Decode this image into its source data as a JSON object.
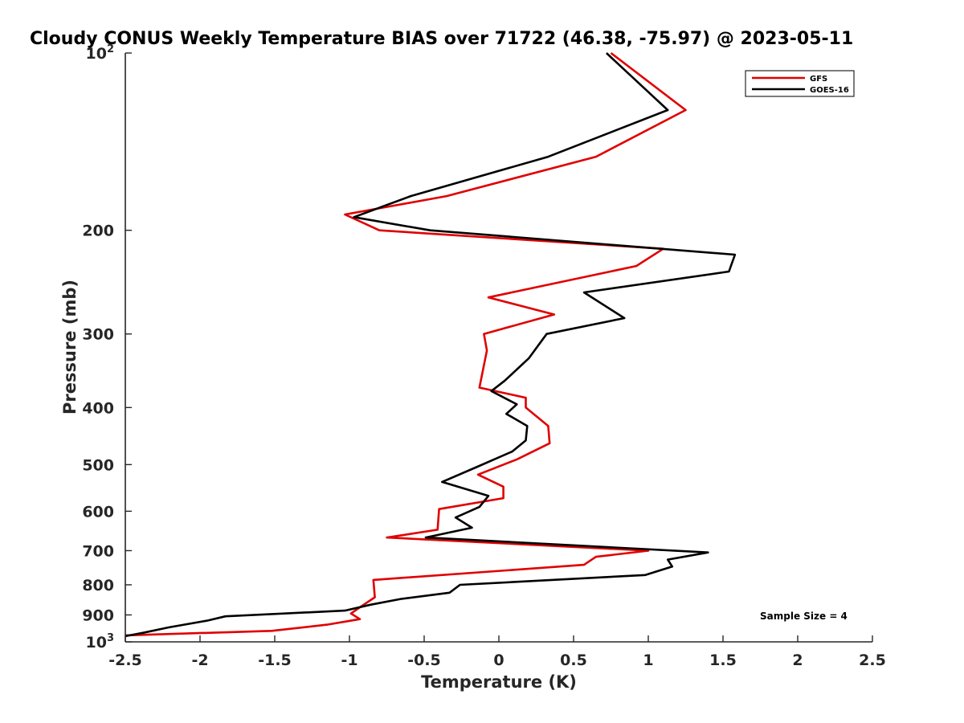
{
  "chart_data": {
    "type": "line",
    "title": "Cloudy CONUS Weekly Temperature BIAS over 71722 (46.38, -75.97) @ 2023-05-11",
    "xlabel": "Temperature (K)",
    "ylabel": "Pressure (mb)",
    "xlim": [
      -2.5,
      2.5
    ],
    "ylim": [
      100,
      1000
    ],
    "y_scale": "log",
    "y_reversed": true,
    "grid": false,
    "legend_position": "top-right",
    "x_ticks": [
      -2.5,
      -2,
      -1.5,
      -1,
      -0.5,
      0,
      0.5,
      1,
      1.5,
      2,
      2.5
    ],
    "x_tick_labels": [
      "-2.5",
      "-2",
      "-1.5",
      "-1",
      "-0.5",
      "0",
      "0.5",
      "1",
      "1.5",
      "2",
      "2.5"
    ],
    "y_ticks": [
      100,
      200,
      300,
      400,
      500,
      600,
      700,
      800,
      900,
      1000
    ],
    "y_tick_labels": [
      {
        "base": "10",
        "exp": "2"
      },
      {
        "base": "200",
        "exp": ""
      },
      {
        "base": "300",
        "exp": ""
      },
      {
        "base": "400",
        "exp": ""
      },
      {
        "base": "500",
        "exp": ""
      },
      {
        "base": "600",
        "exp": ""
      },
      {
        "base": "700",
        "exp": ""
      },
      {
        "base": "800",
        "exp": ""
      },
      {
        "base": "900",
        "exp": ""
      },
      {
        "base": "10",
        "exp": "3"
      }
    ],
    "annotation": "Sample Size = 4",
    "series": [
      {
        "name": "GFS",
        "color": "#e00000",
        "points": [
          [
            0.75,
            100
          ],
          [
            1.25,
            125
          ],
          [
            0.65,
            150
          ],
          [
            -0.35,
            175
          ],
          [
            -1.03,
            188
          ],
          [
            -0.8,
            200
          ],
          [
            1.1,
            215
          ],
          [
            0.92,
            230
          ],
          [
            -0.07,
            260
          ],
          [
            0.37,
            278
          ],
          [
            -0.1,
            300
          ],
          [
            -0.08,
            320
          ],
          [
            -0.13,
            370
          ],
          [
            0.18,
            385
          ],
          [
            0.18,
            400
          ],
          [
            0.33,
            430
          ],
          [
            0.34,
            460
          ],
          [
            0.12,
            490
          ],
          [
            -0.14,
            520
          ],
          [
            0.03,
            545
          ],
          [
            0.03,
            570
          ],
          [
            -0.4,
            595
          ],
          [
            -0.41,
            645
          ],
          [
            -0.75,
            665
          ],
          [
            1.0,
            700
          ],
          [
            0.65,
            717
          ],
          [
            0.57,
            740
          ],
          [
            -0.84,
            785
          ],
          [
            -0.83,
            840
          ],
          [
            -0.92,
            870
          ],
          [
            -0.99,
            895
          ],
          [
            -0.93,
            915
          ],
          [
            -1.15,
            935
          ],
          [
            -1.52,
            958
          ],
          [
            -2.5,
            975
          ]
        ]
      },
      {
        "name": "GOES-16",
        "color": "#000000",
        "points": [
          [
            0.72,
            100
          ],
          [
            1.13,
            125
          ],
          [
            0.33,
            150
          ],
          [
            -0.59,
            175
          ],
          [
            -0.97,
            190
          ],
          [
            -0.46,
            200
          ],
          [
            1.58,
            220
          ],
          [
            1.54,
            235
          ],
          [
            0.57,
            255
          ],
          [
            0.84,
            282
          ],
          [
            0.32,
            300
          ],
          [
            0.2,
            330
          ],
          [
            0.04,
            360
          ],
          [
            -0.05,
            375
          ],
          [
            0.12,
            395
          ],
          [
            0.05,
            410
          ],
          [
            0.19,
            430
          ],
          [
            0.18,
            455
          ],
          [
            0.09,
            475
          ],
          [
            -0.15,
            505
          ],
          [
            -0.38,
            535
          ],
          [
            -0.07,
            565
          ],
          [
            -0.13,
            590
          ],
          [
            -0.29,
            615
          ],
          [
            -0.18,
            640
          ],
          [
            -0.49,
            665
          ],
          [
            1.4,
            705
          ],
          [
            1.13,
            725
          ],
          [
            1.16,
            745
          ],
          [
            0.98,
            770
          ],
          [
            -0.26,
            800
          ],
          [
            -0.33,
            825
          ],
          [
            -0.65,
            845
          ],
          [
            -0.86,
            865
          ],
          [
            -1.03,
            885
          ],
          [
            -1.83,
            905
          ],
          [
            -1.95,
            920
          ],
          [
            -2.21,
            945
          ],
          [
            -2.38,
            965
          ],
          [
            -2.5,
            978
          ]
        ]
      }
    ]
  }
}
